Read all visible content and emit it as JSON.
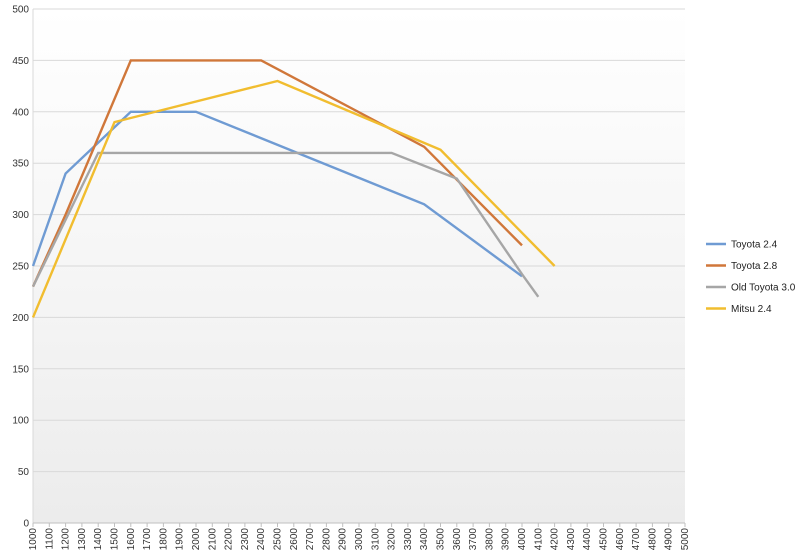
{
  "chart_data": {
    "type": "line",
    "title": "",
    "xlabel": "",
    "ylabel": "",
    "x_categories": [
      "1000",
      "1100",
      "1200",
      "1300",
      "1400",
      "1500",
      "1600",
      "1700",
      "1800",
      "1900",
      "2000",
      "2100",
      "2200",
      "2300",
      "2400",
      "2500",
      "2600",
      "2700",
      "2800",
      "2900",
      "3000",
      "3100",
      "3200",
      "3300",
      "3400",
      "3500",
      "3600",
      "3700",
      "3800",
      "3900",
      "4000",
      "4100",
      "4200",
      "4300",
      "4400",
      "4500",
      "4600",
      "4700",
      "4800",
      "4900",
      "5000"
    ],
    "ylim": [
      0,
      500
    ],
    "y_ticks": [
      0,
      50,
      100,
      150,
      200,
      250,
      300,
      350,
      400,
      450,
      500
    ],
    "grid": true,
    "legend_position": "right",
    "series": [
      {
        "name": "Toyota 2.4",
        "color": "#6f9bd3",
        "points": [
          [
            1000,
            250
          ],
          [
            1200,
            340
          ],
          [
            1600,
            400
          ],
          [
            2000,
            400
          ],
          [
            3400,
            310
          ],
          [
            4000,
            240
          ]
        ]
      },
      {
        "name": "Toyota 2.8",
        "color": "#d0773a",
        "points": [
          [
            1000,
            230
          ],
          [
            1200,
            300
          ],
          [
            1600,
            450
          ],
          [
            2400,
            450
          ],
          [
            3400,
            366
          ],
          [
            4000,
            270
          ]
        ]
      },
      {
        "name": "Old Toyota 3.0",
        "color": "#a6a6a6",
        "points": [
          [
            1000,
            230
          ],
          [
            1400,
            360
          ],
          [
            3200,
            360
          ],
          [
            3600,
            335
          ],
          [
            4000,
            242
          ],
          [
            4100,
            220
          ]
        ]
      },
      {
        "name": "Mitsu 2.4",
        "color": "#f1bd2f",
        "points": [
          [
            1000,
            200
          ],
          [
            1500,
            390
          ],
          [
            2500,
            430
          ],
          [
            3500,
            363
          ],
          [
            4200,
            250
          ]
        ]
      }
    ]
  }
}
